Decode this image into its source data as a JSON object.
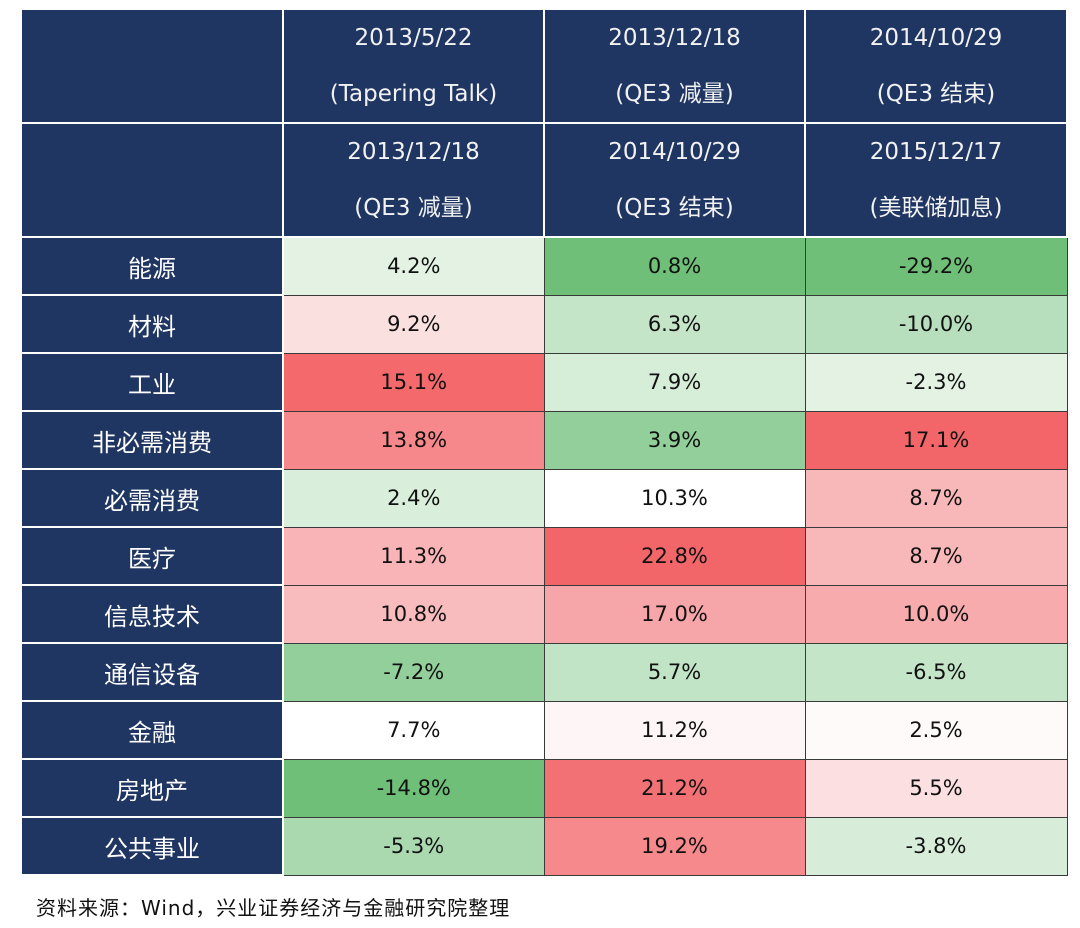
{
  "header": {
    "rows": [
      [
        {
          "date": "2013/5/22",
          "event": "(Tapering Talk)"
        },
        {
          "date": "2013/12/18",
          "event": "(QE3 减量)"
        },
        {
          "date": "2014/10/29",
          "event": "(QE3 结束)"
        }
      ],
      [
        {
          "date": "2013/12/18",
          "event": "(QE3 减量)"
        },
        {
          "date": "2014/10/29",
          "event": "(QE3 结束)"
        },
        {
          "date": "2015/12/17",
          "event": "(美联储加息)"
        }
      ]
    ]
  },
  "rows": [
    {
      "sector": "能源",
      "values": [
        {
          "text": "4.2%",
          "color": "#e3f2e3"
        },
        {
          "text": "0.8%",
          "color": "#6fbf78"
        },
        {
          "text": "-29.2%",
          "color": "#6fbf78"
        }
      ]
    },
    {
      "sector": "材料",
      "values": [
        {
          "text": "9.2%",
          "color": "#fbe0e0"
        },
        {
          "text": "6.3%",
          "color": "#c5e5c9"
        },
        {
          "text": "-10.0%",
          "color": "#b8dfbd"
        }
      ]
    },
    {
      "sector": "工业",
      "values": [
        {
          "text": "15.1%",
          "color": "#f4696b"
        },
        {
          "text": "7.9%",
          "color": "#d6eed8"
        },
        {
          "text": "-2.3%",
          "color": "#e3f2e3"
        }
      ]
    },
    {
      "sector": "非必需消费",
      "values": [
        {
          "text": "13.8%",
          "color": "#f6878a"
        },
        {
          "text": "3.9%",
          "color": "#93cf9a"
        },
        {
          "text": "17.1%",
          "color": "#f2666a"
        }
      ]
    },
    {
      "sector": "必需消费",
      "values": [
        {
          "text": "2.4%",
          "color": "#d9efdb"
        },
        {
          "text": "10.3%",
          "color": "#ffffff"
        },
        {
          "text": "8.7%",
          "color": "#f8b8ba"
        }
      ]
    },
    {
      "sector": "医疗",
      "values": [
        {
          "text": "11.3%",
          "color": "#f8b4b6"
        },
        {
          "text": "22.8%",
          "color": "#f2666a"
        },
        {
          "text": "8.7%",
          "color": "#f8b8ba"
        }
      ]
    },
    {
      "sector": "信息技术",
      "values": [
        {
          "text": "10.8%",
          "color": "#f8bcbe"
        },
        {
          "text": "17.0%",
          "color": "#f6a5a8"
        },
        {
          "text": "10.0%",
          "color": "#f7abad"
        }
      ]
    },
    {
      "sector": "通信设备",
      "values": [
        {
          "text": "-7.2%",
          "color": "#93cf9a"
        },
        {
          "text": "5.7%",
          "color": "#c2e4c6"
        },
        {
          "text": "-6.5%",
          "color": "#c5e5c9"
        }
      ]
    },
    {
      "sector": "金融",
      "values": [
        {
          "text": "7.7%",
          "color": "#ffffff"
        },
        {
          "text": "11.2%",
          "color": "#fef6f6"
        },
        {
          "text": "2.5%",
          "color": "#fffafa"
        }
      ]
    },
    {
      "sector": "房地产",
      "values": [
        {
          "text": "-14.8%",
          "color": "#6fbf78"
        },
        {
          "text": "21.2%",
          "color": "#f27174"
        },
        {
          "text": "5.5%",
          "color": "#fce0e1"
        }
      ]
    },
    {
      "sector": "公共事业",
      "values": [
        {
          "text": "-5.3%",
          "color": "#aad9b0"
        },
        {
          "text": "19.2%",
          "color": "#f6898c"
        },
        {
          "text": "-3.8%",
          "color": "#d7edda"
        }
      ]
    }
  ],
  "source": "资料来源：Wind，兴业证券经济与金融研究院整理"
}
